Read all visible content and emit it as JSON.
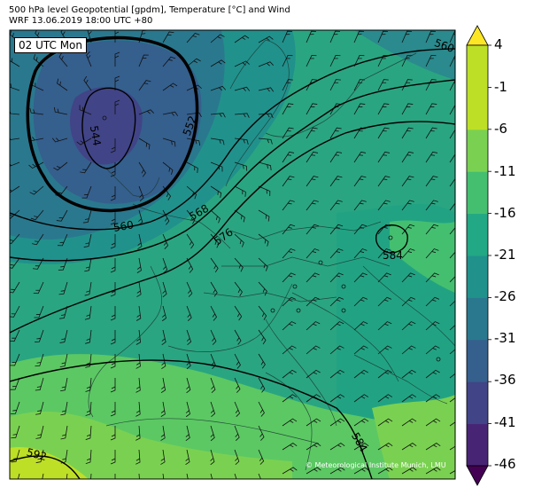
{
  "header": {
    "title_line1": "500 hPa level Geopotential [gpdm], Temperature [°C] and Wind",
    "title_line2": "WRF 13.06.2019 18:00 UTC +80"
  },
  "map": {
    "time_label": "02 UTC Mon",
    "credit": "© Meteorological Institute Munich, LMU"
  },
  "contours": {
    "labels": [
      "544",
      "552",
      "560",
      "560",
      "568",
      "576",
      "584",
      "584",
      "592"
    ]
  },
  "colorbar": {
    "ticks": [
      "4",
      "-1",
      "-6",
      "-11",
      "-16",
      "-21",
      "-26",
      "-31",
      "-36",
      "-41",
      "-46"
    ],
    "colors": [
      "#440154",
      "#482475",
      "#414487",
      "#355f8d",
      "#2a788e",
      "#21918c",
      "#22a884",
      "#44bf70",
      "#7ad151",
      "#bddf26",
      "#fde725"
    ]
  }
}
